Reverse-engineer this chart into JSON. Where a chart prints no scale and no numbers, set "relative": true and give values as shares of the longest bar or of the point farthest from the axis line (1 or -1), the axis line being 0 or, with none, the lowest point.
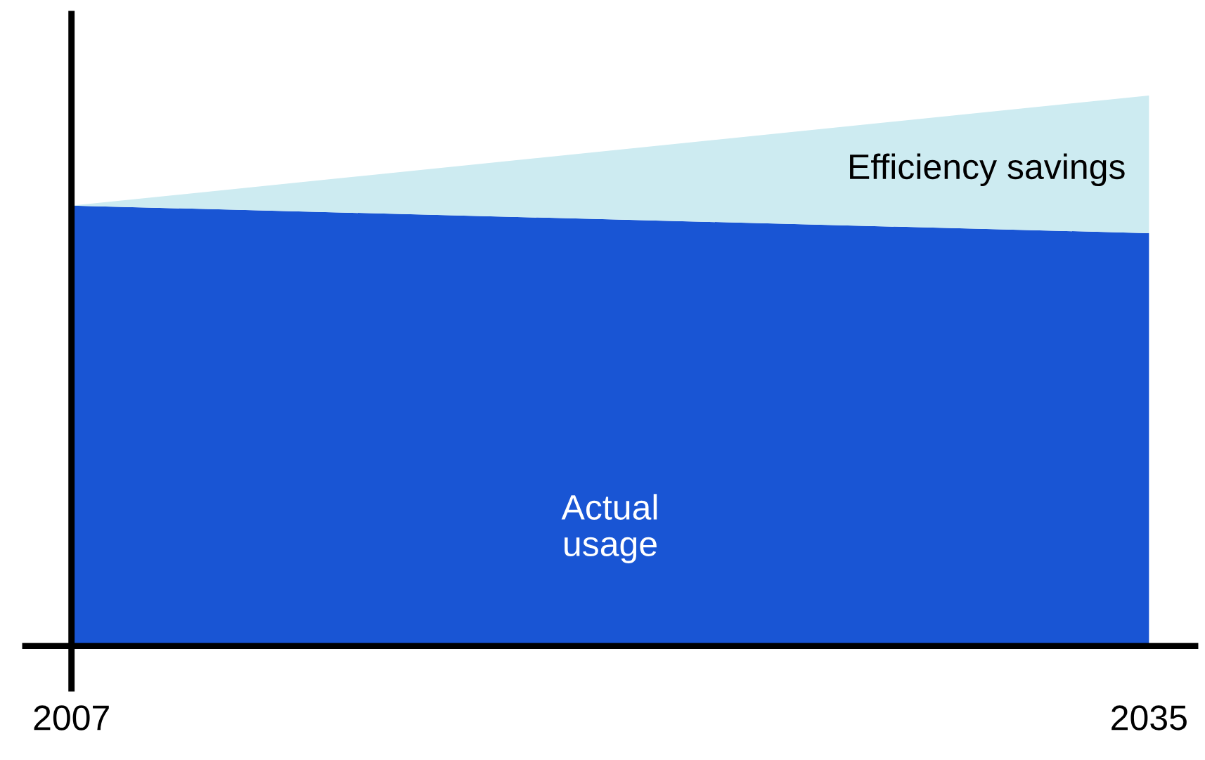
{
  "chart_data": {
    "type": "area",
    "stacked": true,
    "relative": true,
    "x": [
      2007,
      2035
    ],
    "xlim": [
      2005.8,
      2036.2
    ],
    "xticks": [
      2007,
      2035
    ],
    "series": [
      {
        "name": "Actual\nusage",
        "color": "#1955d4",
        "values": [
          0.8,
          0.75
        ]
      },
      {
        "name": "Efficiency savings",
        "color": "#cdebf1",
        "values": [
          0,
          0.25
        ]
      }
    ]
  }
}
